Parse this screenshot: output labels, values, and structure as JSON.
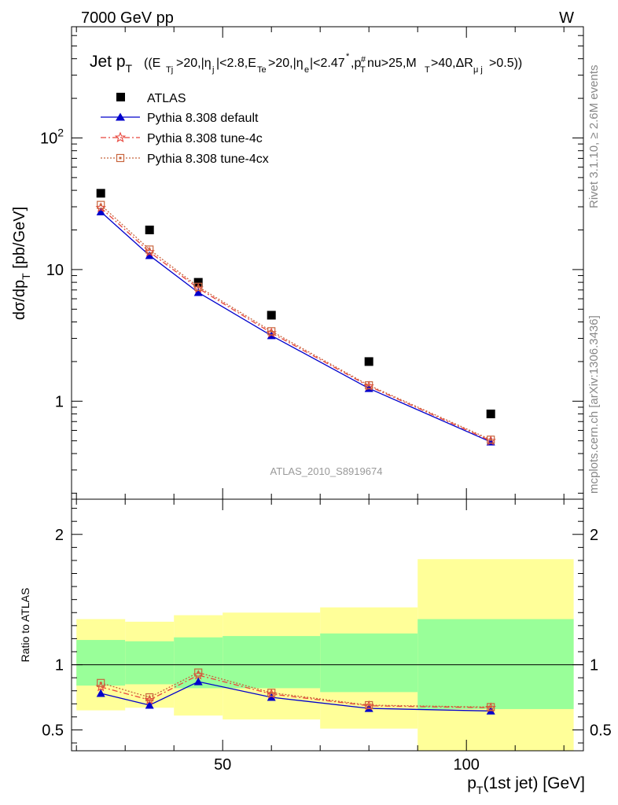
{
  "header": {
    "left": "7000 GeV pp",
    "right": "W"
  },
  "side_text": {
    "rivet": "Rivet 3.1.10, ≥ 2.6M events",
    "mcplots": "mcplots.cern.ch [arXiv:1306.3436]"
  },
  "plot_title": {
    "main": "Jet p",
    "main_sub": "T",
    "cuts": "((E",
    "cuts_full": "((E_Tj>20,|η_j|<2.8,E_Te>20,|η_e|<2.47*,p_T#nu>25,M_T>40,ΔR_μj>0.5))"
  },
  "watermark": "ATLAS_2010_S8919674",
  "colors": {
    "atlas": "#000000",
    "default": "#0000cc",
    "tune4c": "#e8463c",
    "tune4cx": "#c8643c",
    "band_green": "#99ff99",
    "band_yellow": "#ffff99"
  },
  "chart_data": [
    {
      "type": "scatter",
      "panel": "main",
      "ylabel": "dσ/dp_T [pb/GeV]",
      "yscale": "log",
      "ylim": [
        0.18,
        700
      ],
      "xlim": [
        19,
        124
      ],
      "y_ticks": [
        {
          "value": 1,
          "label": "1"
        },
        {
          "value": 10,
          "label": "10"
        },
        {
          "value": 100,
          "label": "10^2"
        }
      ],
      "legend": [
        "ATLAS",
        "Pythia 8.308 default",
        "Pythia 8.308 tune-4c",
        "Pythia 8.308 tune-4cx"
      ],
      "legend_position": "top-left",
      "x": [
        25,
        35,
        45,
        60,
        80,
        105
      ],
      "series": [
        {
          "name": "ATLAS",
          "style": "square",
          "values": [
            38,
            20,
            8.0,
            4.5,
            2.0,
            0.8
          ]
        },
        {
          "name": "Pythia 8.308 default",
          "style": "triangle",
          "values": [
            27.5,
            12.8,
            6.7,
            3.15,
            1.25,
            0.49
          ]
        },
        {
          "name": "Pythia 8.308 tune-4c",
          "style": "star",
          "values": [
            29.5,
            13.6,
            7.2,
            3.3,
            1.3,
            0.5
          ]
        },
        {
          "name": "Pythia 8.308 tune-4cx",
          "style": "open-square",
          "values": [
            31,
            14.2,
            7.4,
            3.4,
            1.32,
            0.51
          ]
        }
      ]
    },
    {
      "type": "line",
      "panel": "ratio",
      "xlabel": "p_T(1st jet) [GeV]",
      "ylabel": "Ratio to ATLAS",
      "ylim": [
        0.34,
        2.27
      ],
      "xlim": [
        19,
        124
      ],
      "x_ticks": [
        {
          "value": 50,
          "label": "50"
        },
        {
          "value": 100,
          "label": "100"
        }
      ],
      "y_ticks": [
        {
          "value": 0.5,
          "label": "0.5"
        },
        {
          "value": 1,
          "label": "1"
        },
        {
          "value": 2,
          "label": "2"
        }
      ],
      "bins": [
        [
          20,
          30
        ],
        [
          30,
          40
        ],
        [
          40,
          50
        ],
        [
          50,
          70
        ],
        [
          70,
          90
        ],
        [
          90,
          122
        ]
      ],
      "band_green": [
        [
          0.84,
          1.19
        ],
        [
          0.85,
          1.18
        ],
        [
          0.82,
          1.21
        ],
        [
          0.82,
          1.22
        ],
        [
          0.79,
          1.24
        ],
        [
          0.66,
          1.35
        ]
      ],
      "band_yellow": [
        [
          0.65,
          1.35
        ],
        [
          0.67,
          1.33
        ],
        [
          0.61,
          1.38
        ],
        [
          0.58,
          1.4
        ],
        [
          0.51,
          1.44
        ],
        [
          0.3,
          1.81
        ]
      ],
      "x": [
        25,
        35,
        45,
        60,
        80,
        105
      ],
      "series": [
        {
          "name": "Pythia 8.308 default",
          "style": "triangle",
          "values": [
            0.78,
            0.69,
            0.87,
            0.75,
            0.665,
            0.645
          ]
        },
        {
          "name": "Pythia 8.308 tune-4c",
          "style": "star",
          "values": [
            0.83,
            0.73,
            0.92,
            0.775,
            0.685,
            0.67
          ]
        },
        {
          "name": "Pythia 8.308 tune-4cx",
          "style": "open-square",
          "values": [
            0.86,
            0.75,
            0.94,
            0.785,
            0.69,
            0.675
          ]
        }
      ]
    }
  ]
}
